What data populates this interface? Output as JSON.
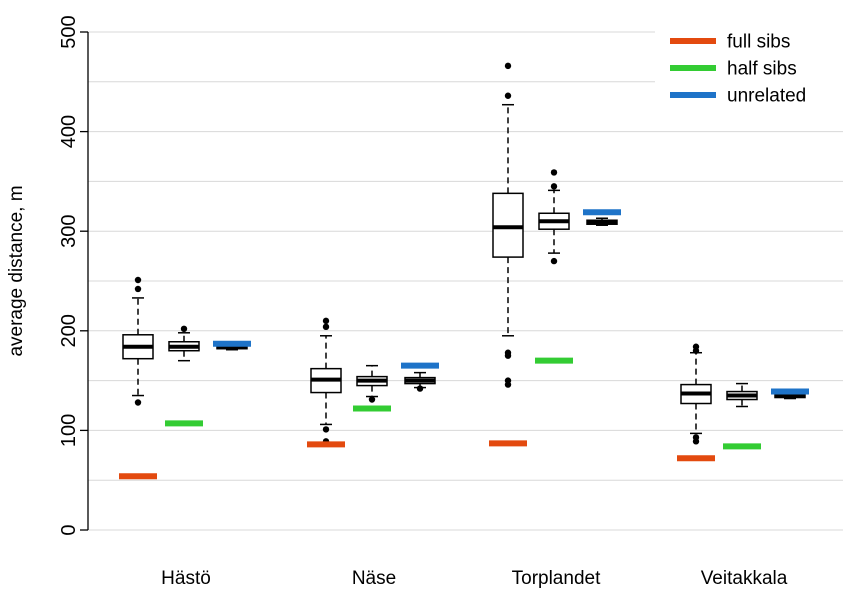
{
  "chart_data": {
    "type": "box",
    "ylabel": "average distance, m",
    "ylim": [
      0,
      500
    ],
    "yticks": [
      0,
      100,
      200,
      300,
      400,
      500
    ],
    "ytick_labels": [
      "0",
      "100",
      "200",
      "300",
      "400",
      "500"
    ],
    "grid_step": 50,
    "categories": [
      "Hästö",
      "Näse",
      "Torplandet",
      "Veitakkala"
    ],
    "legend_position": "top-right",
    "reference_series": [
      {
        "name": "full sibs",
        "color": "#e34a0f",
        "values": [
          54,
          86,
          87,
          72
        ]
      },
      {
        "name": "half sibs",
        "color": "#33cc33",
        "values": [
          107,
          122,
          170,
          84
        ]
      },
      {
        "name": "unrelated",
        "color": "#1e73c8",
        "values": [
          187,
          165,
          319,
          139
        ]
      }
    ],
    "boxes": [
      [
        {
          "q1": 172,
          "median": 184,
          "q3": 196,
          "whisker_low": 135,
          "whisker_high": 233,
          "outliers": [
            128,
            242,
            251
          ]
        },
        {
          "q1": 180,
          "median": 184,
          "q3": 189,
          "whisker_low": 170,
          "whisker_high": 198,
          "outliers": [
            202
          ]
        },
        {
          "q1": 182,
          "median": 184,
          "q3": 186,
          "whisker_low": 181,
          "whisker_high": 188,
          "outliers": []
        }
      ],
      [
        {
          "q1": 138,
          "median": 151,
          "q3": 162,
          "whisker_low": 106,
          "whisker_high": 195,
          "outliers": [
            101,
            89,
            204,
            210
          ]
        },
        {
          "q1": 145,
          "median": 150,
          "q3": 154,
          "whisker_low": 134,
          "whisker_high": 165,
          "outliers": [
            131
          ]
        },
        {
          "q1": 147,
          "median": 150,
          "q3": 153,
          "whisker_low": 143,
          "whisker_high": 158,
          "outliers": [
            142
          ]
        }
      ],
      [
        {
          "q1": 274,
          "median": 304,
          "q3": 338,
          "whisker_low": 195,
          "whisker_high": 427,
          "outliers": [
            178,
            175,
            150,
            146,
            436,
            466
          ]
        },
        {
          "q1": 302,
          "median": 310,
          "q3": 318,
          "whisker_low": 278,
          "whisker_high": 341,
          "outliers": [
            270,
            345,
            359
          ]
        },
        {
          "q1": 307,
          "median": 309,
          "q3": 311,
          "whisker_low": 306,
          "whisker_high": 313,
          "outliers": []
        }
      ],
      [
        {
          "q1": 127,
          "median": 137,
          "q3": 146,
          "whisker_low": 97,
          "whisker_high": 178,
          "outliers": [
            93,
            89,
            180,
            184
          ]
        },
        {
          "q1": 131,
          "median": 135,
          "q3": 139,
          "whisker_low": 124,
          "whisker_high": 147,
          "outliers": []
        },
        {
          "q1": 133,
          "median": 135,
          "q3": 136,
          "whisker_low": 132,
          "whisker_high": 138,
          "outliers": []
        }
      ]
    ]
  }
}
